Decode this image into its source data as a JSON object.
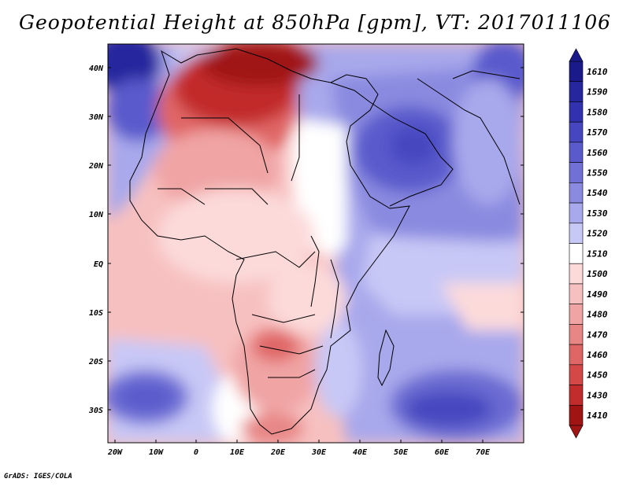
{
  "title": "Geopotential Height at 850hPa [gpm], VT: 2017011106",
  "credit": "GrADS: IGES/COLA",
  "lat_labels": [
    "40N",
    "30N",
    "20N",
    "10N",
    "EQ",
    "10S",
    "20S",
    "30S"
  ],
  "lon_labels": [
    "20W",
    "10W",
    "0",
    "10E",
    "20E",
    "30E",
    "40E",
    "50E",
    "60E",
    "70E"
  ],
  "colorbar": {
    "levels": [
      "1610",
      "1590",
      "1580",
      "1570",
      "1560",
      "1550",
      "1540",
      "1530",
      "1520",
      "1510",
      "1500",
      "1490",
      "1480",
      "1470",
      "1460",
      "1450",
      "1430",
      "1410"
    ],
    "colors": [
      "#1a1a8a",
      "#26269e",
      "#3232b0",
      "#4646c0",
      "#5a5acc",
      "#7070d6",
      "#8a8ae0",
      "#a8a8ec",
      "#c8c8f6",
      "#ffffff",
      "#fcdada",
      "#f7c0c0",
      "#f0a4a4",
      "#e88686",
      "#e06666",
      "#d44848",
      "#c22c2c",
      "#a01414"
    ]
  },
  "map": {
    "field": "geopotential height",
    "level": "850hPa",
    "units": "gpm",
    "valid_time": "2017011106"
  }
}
